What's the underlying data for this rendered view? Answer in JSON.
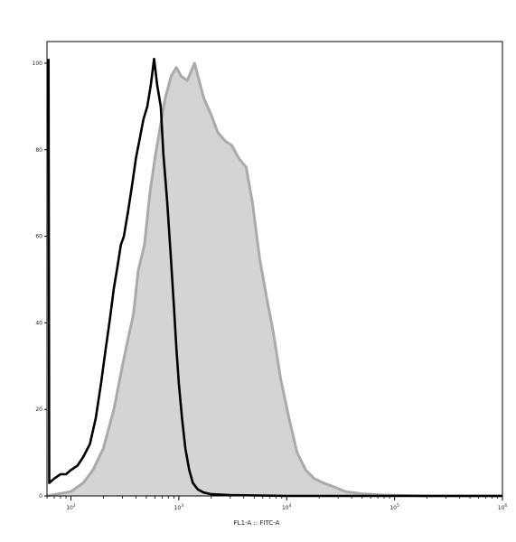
{
  "chart_data": {
    "type": "area",
    "xlabel": "FL1-A :: FITC-A",
    "ylabel": "",
    "x_scale": "log",
    "xlim": [
      60,
      1000000
    ],
    "ylim": [
      0,
      105
    ],
    "y_ticks": [
      0,
      20,
      40,
      60,
      80,
      100
    ],
    "x_ticks": [
      {
        "base": "10",
        "exp": "2",
        "value": 100
      },
      {
        "base": "10",
        "exp": "3",
        "value": 1000
      },
      {
        "base": "10",
        "exp": "4",
        "value": 10000
      },
      {
        "base": "10",
        "exp": "5",
        "value": 100000
      },
      {
        "base": "10",
        "exp": "6",
        "value": 1000000
      }
    ],
    "grid": false,
    "legend": "none",
    "series": [
      {
        "style": "filled",
        "color": "#aaaaaa",
        "fill": "#d4d4d4",
        "points": [
          [
            60,
            0
          ],
          [
            100,
            1
          ],
          [
            130,
            3
          ],
          [
            160,
            6
          ],
          [
            200,
            11
          ],
          [
            250,
            20
          ],
          [
            300,
            30
          ],
          [
            330,
            35
          ],
          [
            380,
            42
          ],
          [
            420,
            52
          ],
          [
            480,
            58
          ],
          [
            540,
            70
          ],
          [
            600,
            78
          ],
          [
            680,
            86
          ],
          [
            750,
            92
          ],
          [
            850,
            97
          ],
          [
            950,
            99
          ],
          [
            1050,
            97
          ],
          [
            1200,
            96
          ],
          [
            1400,
            100
          ],
          [
            1700,
            92
          ],
          [
            2000,
            88
          ],
          [
            2300,
            84
          ],
          [
            2700,
            82
          ],
          [
            3100,
            81
          ],
          [
            3600,
            78
          ],
          [
            4200,
            76
          ],
          [
            4800,
            68
          ],
          [
            5600,
            55
          ],
          [
            6500,
            46
          ],
          [
            7500,
            38
          ],
          [
            8800,
            27
          ],
          [
            10500,
            18
          ],
          [
            12500,
            10
          ],
          [
            15000,
            6
          ],
          [
            18000,
            4
          ],
          [
            22000,
            3
          ],
          [
            28000,
            2
          ],
          [
            35000,
            1
          ],
          [
            50000,
            0.5
          ],
          [
            80000,
            0.2
          ],
          [
            200000,
            0
          ],
          [
            1000000,
            0
          ]
        ]
      },
      {
        "style": "line",
        "color": "#000000",
        "points": [
          [
            62,
            101
          ],
          [
            63,
            3
          ],
          [
            70,
            4
          ],
          [
            80,
            5
          ],
          [
            90,
            5
          ],
          [
            100,
            6
          ],
          [
            115,
            7
          ],
          [
            130,
            9
          ],
          [
            150,
            12
          ],
          [
            170,
            18
          ],
          [
            190,
            26
          ],
          [
            210,
            34
          ],
          [
            230,
            41
          ],
          [
            250,
            48
          ],
          [
            270,
            53
          ],
          [
            290,
            58
          ],
          [
            310,
            60
          ],
          [
            340,
            66
          ],
          [
            370,
            72
          ],
          [
            400,
            78
          ],
          [
            430,
            82
          ],
          [
            470,
            87
          ],
          [
            510,
            90
          ],
          [
            550,
            95
          ],
          [
            590,
            101
          ],
          [
            630,
            95
          ],
          [
            680,
            90
          ],
          [
            720,
            79
          ],
          [
            780,
            68
          ],
          [
            840,
            56
          ],
          [
            900,
            44
          ],
          [
            950,
            34
          ],
          [
            1000,
            26
          ],
          [
            1070,
            18
          ],
          [
            1150,
            11
          ],
          [
            1250,
            6
          ],
          [
            1350,
            3
          ],
          [
            1500,
            1.5
          ],
          [
            1700,
            0.8
          ],
          [
            2000,
            0.4
          ],
          [
            3000,
            0.2
          ],
          [
            10000,
            0
          ],
          [
            1000000,
            0
          ]
        ]
      }
    ]
  }
}
